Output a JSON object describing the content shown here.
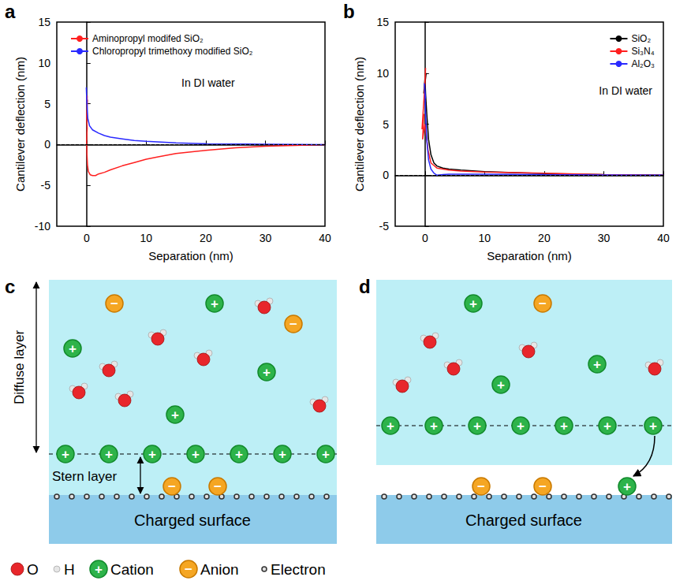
{
  "chart_data": [
    {
      "type": "line",
      "label": "a",
      "annotation": "In DI water",
      "x_label": "Separation (nm)",
      "y_label": "Cantilever deflection (nm)",
      "xlim": [
        -5,
        40
      ],
      "xticks": [
        0,
        10,
        20,
        30,
        40
      ],
      "ylim": [
        -10,
        15
      ],
      "yticks": [
        -10,
        -5,
        0,
        5,
        10,
        15
      ],
      "reference_line": 0,
      "legend": "upper left",
      "grid": false,
      "series": [
        {
          "name": "Aminopropyl modifed SiO₂",
          "color": "#ff2020",
          "x": [
            40,
            35,
            30,
            25,
            20,
            15,
            12,
            10,
            8,
            6,
            4,
            3,
            2,
            1.5,
            1,
            0.6,
            0.3,
            0.15,
            0.05,
            0,
            0.1,
            0,
            0.15,
            0.05,
            0.1
          ],
          "values": [
            0,
            -0.1,
            -0.2,
            -0.4,
            -0.7,
            -1.1,
            -1.5,
            -1.8,
            -2.2,
            -2.6,
            -3.1,
            -3.4,
            -3.6,
            -3.8,
            -3.8,
            -3.7,
            -3.3,
            -2.5,
            -1,
            0.5,
            2,
            3.5,
            5.5,
            4,
            6
          ]
        },
        {
          "name": "Chloropropyl trimethoxy modified SiO₂",
          "color": "#2a2aff",
          "x": [
            40,
            30,
            20,
            15,
            10,
            8,
            6,
            4,
            3,
            2,
            1,
            0.5,
            0.2,
            0.1,
            0,
            0.05,
            -0.05,
            0
          ],
          "values": [
            0,
            0.05,
            0.1,
            0.2,
            0.4,
            0.5,
            0.7,
            0.9,
            1.1,
            1.4,
            1.8,
            2.3,
            3.2,
            4.5,
            6,
            5,
            7,
            6.5
          ]
        }
      ]
    },
    {
      "type": "line",
      "label": "b",
      "annotation": "In DI water",
      "x_label": "Separation (nm)",
      "y_label": "Cantilever deflection (nm)",
      "xlim": [
        -5,
        40
      ],
      "xticks": [
        0,
        10,
        20,
        30,
        40
      ],
      "ylim": [
        -5,
        15
      ],
      "yticks": [
        -5,
        0,
        5,
        10,
        15
      ],
      "reference_line": 0,
      "legend": "upper right",
      "grid": false,
      "series": [
        {
          "name": "SiO₂",
          "color": "#000000",
          "x": [
            40,
            30,
            20,
            15,
            10,
            6,
            4,
            3,
            2,
            1.5,
            1,
            0.6,
            0.3,
            0.1,
            0,
            -0.2,
            0.2,
            0
          ],
          "values": [
            0,
            0.05,
            0.15,
            0.25,
            0.35,
            0.5,
            0.6,
            0.7,
            0.9,
            1.2,
            2,
            3.5,
            6,
            8,
            9.5,
            8,
            10,
            9
          ]
        },
        {
          "name": "Si₃N₄",
          "color": "#ff2020",
          "x": [
            40,
            30,
            20,
            10,
            6,
            4,
            2,
            1,
            0.5,
            0.2,
            0,
            -0.4,
            -0.2,
            -0.5,
            0,
            0.1,
            -0.1
          ],
          "values": [
            0,
            0.05,
            0.2,
            0.3,
            0.4,
            0.5,
            0.7,
            1.2,
            2.5,
            4,
            5,
            3.5,
            6,
            4.5,
            9,
            10.5,
            8
          ]
        },
        {
          "name": "Al₂O₃",
          "color": "#2a2aff",
          "x": [
            40,
            30,
            20,
            10,
            6,
            4,
            3,
            2,
            1.5,
            1,
            0.6,
            0.3,
            0.1,
            0,
            -0.1,
            0.1
          ],
          "values": [
            0,
            0.02,
            0.05,
            0.1,
            0.1,
            0.1,
            0.05,
            0,
            0.2,
            0.6,
            1.5,
            3.5,
            6,
            8,
            9,
            7.5
          ]
        }
      ]
    }
  ],
  "diagrams": [
    {
      "label": "c",
      "diffuse_layer": "Diffuse layer",
      "stern_layer": "Stern layer",
      "surface": "Charged surface"
    },
    {
      "label": "d",
      "surface": "Charged surface"
    }
  ],
  "key": {
    "cation_sign": "+",
    "anion_sign": "−",
    "items": [
      {
        "label": "O"
      },
      {
        "label": "H"
      },
      {
        "label": "Cation"
      },
      {
        "label": "Anion"
      },
      {
        "label": "Electron"
      }
    ]
  }
}
